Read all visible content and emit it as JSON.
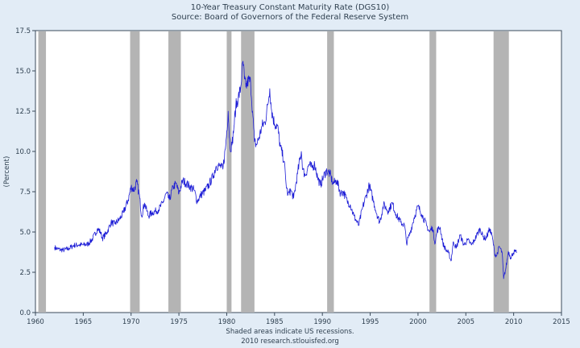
{
  "chart_data": {
    "type": "line",
    "title": "10-Year Treasury Constant Maturity Rate (DGS10)",
    "subtitle": "Source: Board of Governors of the Federal Reserve System",
    "xlabel": "",
    "ylabel": "(Percent)",
    "xlim": [
      1960,
      2015
    ],
    "ylim": [
      0,
      17.5
    ],
    "xticks": [
      1960,
      1965,
      1970,
      1975,
      1980,
      1985,
      1990,
      1995,
      2000,
      2005,
      2010,
      2015
    ],
    "yticks": [
      "0.0",
      "2.5",
      "5.0",
      "7.5",
      "10.0",
      "12.5",
      "15.0",
      "17.5"
    ],
    "grid": false,
    "line_color": "#1c1cd6",
    "recession_color": "#b4b4b4",
    "recessions": [
      [
        1960.3,
        1961.1
      ],
      [
        1969.9,
        1970.9
      ],
      [
        1973.9,
        1975.2
      ],
      [
        1980.0,
        1980.5
      ],
      [
        1981.5,
        1982.9
      ],
      [
        1990.5,
        1991.2
      ],
      [
        2001.2,
        2001.9
      ],
      [
        2007.9,
        2009.5
      ]
    ],
    "series": [
      {
        "values": [
          [
            1962.0,
            4.05
          ],
          [
            1962.3,
            3.95
          ],
          [
            1962.6,
            3.9
          ],
          [
            1963.0,
            3.88
          ],
          [
            1963.5,
            3.98
          ],
          [
            1964.0,
            4.17
          ],
          [
            1964.5,
            4.2
          ],
          [
            1965.0,
            4.2
          ],
          [
            1965.5,
            4.25
          ],
          [
            1966.0,
            4.6
          ],
          [
            1966.5,
            5.2
          ],
          [
            1966.8,
            5.0
          ],
          [
            1967.0,
            4.6
          ],
          [
            1967.5,
            5.0
          ],
          [
            1967.9,
            5.6
          ],
          [
            1968.3,
            5.5
          ],
          [
            1968.8,
            5.8
          ],
          [
            1969.2,
            6.2
          ],
          [
            1969.7,
            7.0
          ],
          [
            1970.0,
            7.8
          ],
          [
            1970.3,
            7.6
          ],
          [
            1970.6,
            8.1
          ],
          [
            1970.9,
            7.1
          ],
          [
            1971.1,
            6.0
          ],
          [
            1971.4,
            6.8
          ],
          [
            1971.8,
            6.0
          ],
          [
            1972.2,
            6.2
          ],
          [
            1972.6,
            6.3
          ],
          [
            1972.9,
            6.4
          ],
          [
            1973.3,
            6.8
          ],
          [
            1973.7,
            7.4
          ],
          [
            1974.0,
            7.0
          ],
          [
            1974.4,
            7.8
          ],
          [
            1974.7,
            8.0
          ],
          [
            1975.0,
            7.4
          ],
          [
            1975.4,
            8.2
          ],
          [
            1975.8,
            8.0
          ],
          [
            1976.2,
            7.8
          ],
          [
            1976.6,
            7.6
          ],
          [
            1976.9,
            6.9
          ],
          [
            1977.3,
            7.3
          ],
          [
            1977.8,
            7.6
          ],
          [
            1978.2,
            8.0
          ],
          [
            1978.6,
            8.5
          ],
          [
            1978.9,
            9.1
          ],
          [
            1979.3,
            9.1
          ],
          [
            1979.6,
            8.9
          ],
          [
            1979.9,
            10.4
          ],
          [
            1980.15,
            12.5
          ],
          [
            1980.35,
            10.2
          ],
          [
            1980.55,
            10.4
          ],
          [
            1980.75,
            11.5
          ],
          [
            1980.95,
            12.8
          ],
          [
            1981.2,
            13.3
          ],
          [
            1981.45,
            13.9
          ],
          [
            1981.7,
            15.6
          ],
          [
            1981.85,
            14.5
          ],
          [
            1982.0,
            14.0
          ],
          [
            1982.25,
            14.4
          ],
          [
            1982.5,
            14.3
          ],
          [
            1982.7,
            12.5
          ],
          [
            1982.9,
            10.6
          ],
          [
            1983.1,
            10.4
          ],
          [
            1983.4,
            10.9
          ],
          [
            1983.7,
            11.6
          ],
          [
            1984.0,
            11.8
          ],
          [
            1984.3,
            12.9
          ],
          [
            1984.5,
            13.9
          ],
          [
            1984.7,
            12.5
          ],
          [
            1985.0,
            11.7
          ],
          [
            1985.3,
            11.6
          ],
          [
            1985.6,
            10.3
          ],
          [
            1986.0,
            9.4
          ],
          [
            1986.2,
            8.0
          ],
          [
            1986.4,
            7.3
          ],
          [
            1986.7,
            7.6
          ],
          [
            1987.0,
            7.1
          ],
          [
            1987.4,
            8.6
          ],
          [
            1987.8,
            10.0
          ],
          [
            1987.95,
            8.9
          ],
          [
            1988.2,
            8.5
          ],
          [
            1988.6,
            9.2
          ],
          [
            1988.9,
            9.0
          ],
          [
            1989.2,
            9.2
          ],
          [
            1989.5,
            8.4
          ],
          [
            1989.8,
            7.9
          ],
          [
            1990.1,
            8.4
          ],
          [
            1990.4,
            8.8
          ],
          [
            1990.8,
            8.6
          ],
          [
            1991.1,
            8.0
          ],
          [
            1991.5,
            8.2
          ],
          [
            1991.9,
            7.4
          ],
          [
            1992.2,
            7.5
          ],
          [
            1992.6,
            6.9
          ],
          [
            1992.9,
            6.7
          ],
          [
            1993.3,
            6.0
          ],
          [
            1993.8,
            5.4
          ],
          [
            1994.2,
            6.5
          ],
          [
            1994.6,
            7.3
          ],
          [
            1994.9,
            7.9
          ],
          [
            1995.3,
            7.0
          ],
          [
            1995.7,
            6.1
          ],
          [
            1996.0,
            5.6
          ],
          [
            1996.4,
            6.7
          ],
          [
            1996.9,
            6.3
          ],
          [
            1997.3,
            6.8
          ],
          [
            1997.7,
            6.1
          ],
          [
            1998.2,
            5.6
          ],
          [
            1998.6,
            5.4
          ],
          [
            1998.8,
            4.3
          ],
          [
            1999.2,
            5.0
          ],
          [
            1999.6,
            5.9
          ],
          [
            2000.0,
            6.6
          ],
          [
            2000.4,
            6.1
          ],
          [
            2000.9,
            5.4
          ],
          [
            2001.2,
            5.0
          ],
          [
            2001.5,
            5.3
          ],
          [
            2001.8,
            4.3
          ],
          [
            2002.0,
            5.1
          ],
          [
            2002.3,
            5.3
          ],
          [
            2002.6,
            4.3
          ],
          [
            2002.9,
            3.9
          ],
          [
            2003.2,
            3.7
          ],
          [
            2003.45,
            3.2
          ],
          [
            2003.7,
            4.4
          ],
          [
            2004.0,
            4.0
          ],
          [
            2004.4,
            4.8
          ],
          [
            2004.8,
            4.2
          ],
          [
            2005.2,
            4.5
          ],
          [
            2005.6,
            4.2
          ],
          [
            2005.9,
            4.5
          ],
          [
            2006.3,
            5.0
          ],
          [
            2006.5,
            5.2
          ],
          [
            2006.8,
            4.7
          ],
          [
            2007.1,
            4.6
          ],
          [
            2007.5,
            5.2
          ],
          [
            2007.8,
            4.6
          ],
          [
            2008.0,
            3.7
          ],
          [
            2008.2,
            3.5
          ],
          [
            2008.5,
            4.1
          ],
          [
            2008.8,
            3.7
          ],
          [
            2008.95,
            2.1
          ],
          [
            2009.2,
            2.8
          ],
          [
            2009.45,
            3.8
          ],
          [
            2009.7,
            3.4
          ],
          [
            2009.95,
            3.7
          ],
          [
            2010.1,
            3.8
          ],
          [
            2010.3,
            3.7
          ]
        ]
      }
    ],
    "footnote": "Shaded areas indicate US recessions.",
    "source_line": "2010 research.stlouisfed.org"
  }
}
